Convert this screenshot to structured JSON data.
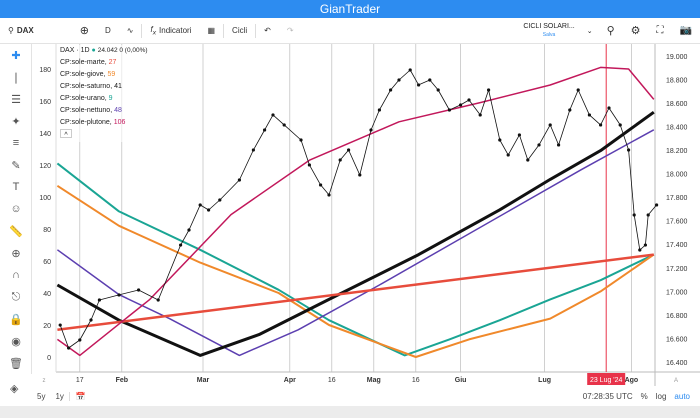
{
  "app": {
    "title": "GianTrader"
  },
  "toolbar": {
    "symbol": "DAX",
    "interval": "D",
    "indicators": "Indicatori",
    "cycles": "Cicli",
    "layout_name": "CICLI SOLARI...",
    "layout_status": "Salva"
  },
  "legend": {
    "symbol": "DAX · 1D",
    "quote": "24.042  0 (0,00%)",
    "items": [
      {
        "label": "CP:sole-marte,",
        "value": "27",
        "color": "#e74c3c"
      },
      {
        "label": "CP:sole-giove,",
        "value": "59",
        "color": "#f0892b"
      },
      {
        "label": "CP:sole-saturno,",
        "value": "41",
        "color": "#111111"
      },
      {
        "label": "CP:sole-urano,",
        "value": "9",
        "color": "#1aa594"
      },
      {
        "label": "CP:sole-nettuno,",
        "value": "48",
        "color": "#5c3fb0"
      },
      {
        "label": "CP:sole-plutone,",
        "value": "106",
        "color": "#c2185b"
      }
    ],
    "collapse": "^"
  },
  "bottom": {
    "ranges": [
      "5y",
      "1y"
    ],
    "time": "07:28:35 UTC",
    "percent": "%",
    "log": "log",
    "auto": "auto"
  },
  "chart_data": {
    "type": "line",
    "left_axis": {
      "ticks": [
        0,
        20,
        40,
        60,
        80,
        100,
        120,
        140,
        160,
        180
      ],
      "range": [
        -4,
        192
      ]
    },
    "right_axis": {
      "ticks": [
        "16.400",
        "16.600",
        "16.800",
        "17.000",
        "17.200",
        "17.400",
        "17.600",
        "17.800",
        "18.000",
        "18.200",
        "18.400",
        "18.600",
        "18.800",
        "19.000"
      ],
      "range": [
        16340,
        19110
      ]
    },
    "x_ticks": [
      {
        "date": "2024-01-17",
        "label": "17"
      },
      {
        "date": "2024-02-01",
        "label": "Feb"
      },
      {
        "date": "2024-03-01",
        "label": "Mar"
      },
      {
        "date": "2024-04-01",
        "label": "Apr"
      },
      {
        "date": "2024-04-16",
        "label": "16"
      },
      {
        "date": "2024-05-01",
        "label": "Mag"
      },
      {
        "date": "2024-05-16",
        "label": "16"
      },
      {
        "date": "2024-06-01",
        "label": "Giu"
      },
      {
        "date": "2024-07-01",
        "label": "Lug"
      },
      {
        "date": "2024-08-01",
        "label": "Ago"
      }
    ],
    "crosshair": {
      "date": "2024-07-23",
      "label": "23 Lug '24",
      "color": "#e8334a"
    },
    "series": [
      {
        "name": "CP:sole-urano",
        "axis": "left",
        "color": "#1aa594",
        "width": 2,
        "points": [
          [
            "2024-01-09",
            121
          ],
          [
            "2024-01-31",
            91
          ],
          [
            "2024-02-29",
            67
          ],
          [
            "2024-03-28",
            42
          ],
          [
            "2024-04-15",
            23
          ],
          [
            "2024-05-12",
            1
          ],
          [
            "2024-05-28",
            11
          ],
          [
            "2024-06-15",
            23
          ],
          [
            "2024-07-03",
            36
          ],
          [
            "2024-07-21",
            48
          ],
          [
            "2024-08-09",
            64
          ]
        ]
      },
      {
        "name": "CP:sole-giove",
        "axis": "left",
        "color": "#f0892b",
        "width": 2,
        "points": [
          [
            "2024-01-09",
            107
          ],
          [
            "2024-01-31",
            82
          ],
          [
            "2024-02-29",
            59
          ],
          [
            "2024-03-28",
            40
          ],
          [
            "2024-04-15",
            20
          ],
          [
            "2024-05-16",
            0
          ],
          [
            "2024-06-04",
            11
          ],
          [
            "2024-07-03",
            24
          ],
          [
            "2024-07-21",
            41
          ],
          [
            "2024-08-09",
            64
          ]
        ]
      },
      {
        "name": "CP:sole-nettuno",
        "axis": "left",
        "color": "#5c3fb0",
        "width": 1.5,
        "points": [
          [
            "2024-01-09",
            67
          ],
          [
            "2024-01-31",
            39
          ],
          [
            "2024-02-18",
            24
          ],
          [
            "2024-03-14",
            1
          ],
          [
            "2024-04-04",
            17
          ],
          [
            "2024-05-03",
            45
          ],
          [
            "2024-05-28",
            70
          ],
          [
            "2024-06-22",
            95
          ],
          [
            "2024-07-14",
            117
          ],
          [
            "2024-08-09",
            142
          ]
        ]
      },
      {
        "name": "CP:sole-saturno",
        "axis": "left",
        "color": "#111111",
        "width": 3,
        "points": [
          [
            "2024-01-09",
            45
          ],
          [
            "2024-01-31",
            23
          ],
          [
            "2024-02-29",
            1
          ],
          [
            "2024-03-21",
            14
          ],
          [
            "2024-04-15",
            36
          ],
          [
            "2024-05-17",
            64
          ],
          [
            "2024-06-15",
            92
          ],
          [
            "2024-07-03",
            111
          ],
          [
            "2024-07-21",
            129
          ],
          [
            "2024-08-09",
            153
          ]
        ]
      },
      {
        "name": "CP:sole-marte",
        "axis": "left",
        "color": "#e74c3c",
        "width": 2.5,
        "points": [
          [
            "2024-01-09",
            17
          ],
          [
            "2024-08-09",
            64
          ]
        ]
      },
      {
        "name": "CP:sole-plutone",
        "axis": "left",
        "color": "#c2185b",
        "width": 1.5,
        "points": [
          [
            "2024-01-09",
            11
          ],
          [
            "2024-01-17",
            1
          ],
          [
            "2024-02-11",
            36
          ],
          [
            "2024-03-11",
            89
          ],
          [
            "2024-04-08",
            123
          ],
          [
            "2024-05-10",
            147
          ],
          [
            "2024-06-08",
            159
          ],
          [
            "2024-07-03",
            170
          ],
          [
            "2024-07-21",
            181
          ],
          [
            "2024-07-31",
            180
          ],
          [
            "2024-08-09",
            161
          ]
        ]
      },
      {
        "name": "DAX",
        "axis": "right",
        "color": "#111111",
        "width": 0.8,
        "markers": true,
        "points": [
          [
            "2024-01-10",
            16713
          ],
          [
            "2024-01-13",
            16518
          ],
          [
            "2024-01-17",
            16586
          ],
          [
            "2024-01-21",
            16756
          ],
          [
            "2024-01-24",
            16926
          ],
          [
            "2024-01-31",
            16969
          ],
          [
            "2024-02-07",
            17011
          ],
          [
            "2024-02-14",
            16926
          ],
          [
            "2024-02-22",
            17393
          ],
          [
            "2024-02-25",
            17521
          ],
          [
            "2024-02-29",
            17734
          ],
          [
            "2024-03-03",
            17691
          ],
          [
            "2024-03-07",
            17776
          ],
          [
            "2024-03-14",
            17946
          ],
          [
            "2024-03-19",
            18201
          ],
          [
            "2024-03-23",
            18371
          ],
          [
            "2024-03-26",
            18499
          ],
          [
            "2024-03-30",
            18414
          ],
          [
            "2024-04-05",
            18286
          ],
          [
            "2024-04-08",
            18074
          ],
          [
            "2024-04-12",
            17904
          ],
          [
            "2024-04-15",
            17819
          ],
          [
            "2024-04-19",
            18116
          ],
          [
            "2024-04-22",
            18201
          ],
          [
            "2024-04-26",
            17989
          ],
          [
            "2024-04-30",
            18371
          ],
          [
            "2024-05-03",
            18541
          ],
          [
            "2024-05-07",
            18711
          ],
          [
            "2024-05-10",
            18796
          ],
          [
            "2024-05-14",
            18881
          ],
          [
            "2024-05-17",
            18754
          ],
          [
            "2024-05-21",
            18796
          ],
          [
            "2024-05-24",
            18711
          ],
          [
            "2024-05-28",
            18541
          ],
          [
            "2024-06-01",
            18584
          ],
          [
            "2024-06-04",
            18626
          ],
          [
            "2024-06-08",
            18499
          ],
          [
            "2024-06-11",
            18711
          ],
          [
            "2024-06-15",
            18286
          ],
          [
            "2024-06-18",
            18159
          ],
          [
            "2024-06-22",
            18329
          ],
          [
            "2024-06-25",
            18116
          ],
          [
            "2024-06-29",
            18244
          ],
          [
            "2024-07-03",
            18414
          ],
          [
            "2024-07-06",
            18244
          ],
          [
            "2024-07-10",
            18541
          ],
          [
            "2024-07-13",
            18711
          ],
          [
            "2024-07-17",
            18499
          ],
          [
            "2024-07-21",
            18414
          ],
          [
            "2024-07-24",
            18558
          ],
          [
            "2024-07-28",
            18414
          ],
          [
            "2024-07-31",
            18201
          ],
          [
            "2024-08-02",
            17649
          ],
          [
            "2024-08-04",
            17351
          ],
          [
            "2024-08-06",
            17393
          ],
          [
            "2024-08-07",
            17649
          ],
          [
            "2024-08-10",
            17734
          ]
        ]
      }
    ]
  }
}
